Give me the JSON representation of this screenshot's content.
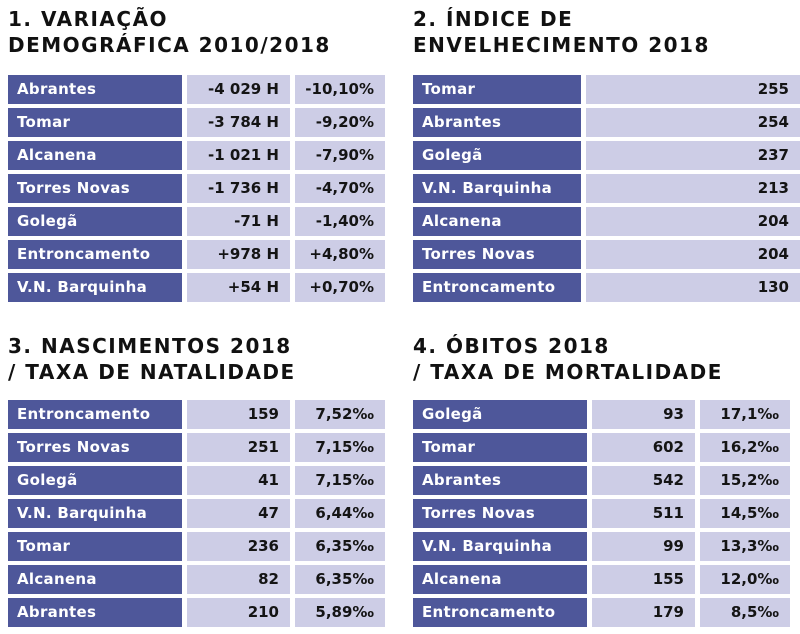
{
  "panels": [
    {
      "id": "variacao",
      "title_line1": "1. VARIAÇÃO",
      "title_line2": "DEMOGRÁFICA 2010/2018",
      "rows": [
        {
          "name": "Abrantes",
          "v1": "-4 029 H",
          "v2": "-10,10%"
        },
        {
          "name": "Tomar",
          "v1": "-3 784 H",
          "v2": "-9,20%"
        },
        {
          "name": "Alcanena",
          "v1": "-1 021 H",
          "v2": "-7,90%"
        },
        {
          "name": "Torres Novas",
          "v1": "-1 736 H",
          "v2": "-4,70%"
        },
        {
          "name": "Golegã",
          "v1": "-71 H",
          "v2": "-1,40%"
        },
        {
          "name": "Entroncamento",
          "v1": "+978 H",
          "v2": "+4,80%"
        },
        {
          "name": "V.N. Barquinha",
          "v1": "+54 H",
          "v2": "+0,70%"
        }
      ]
    },
    {
      "id": "envelhecimento",
      "title_line1": "2. ÍNDICE DE",
      "title_line2": "ENVELHECIMENTO 2018",
      "rows": [
        {
          "name": "Tomar",
          "v1": "255"
        },
        {
          "name": "Abrantes",
          "v1": "254"
        },
        {
          "name": "Golegã",
          "v1": "237"
        },
        {
          "name": "V.N. Barquinha",
          "v1": "213"
        },
        {
          "name": "Alcanena",
          "v1": "204"
        },
        {
          "name": "Torres Novas",
          "v1": "204"
        },
        {
          "name": "Entroncamento",
          "v1": "130"
        }
      ]
    },
    {
      "id": "nascimentos",
      "title_line1": "3. NASCIMENTOS 2018",
      "title_line2": "/ TAXA DE NATALIDADE",
      "rows": [
        {
          "name": "Entroncamento",
          "v1": "159",
          "v2": "7,52‰"
        },
        {
          "name": "Torres Novas",
          "v1": "251",
          "v2": "7,15‰"
        },
        {
          "name": "Golegã",
          "v1": "41",
          "v2": "7,15‰"
        },
        {
          "name": "V.N. Barquinha",
          "v1": "47",
          "v2": "6,44‰"
        },
        {
          "name": "Tomar",
          "v1": "236",
          "v2": "6,35‰"
        },
        {
          "name": "Alcanena",
          "v1": "82",
          "v2": "6,35‰"
        },
        {
          "name": "Abrantes",
          "v1": "210",
          "v2": "5,89‰"
        }
      ]
    },
    {
      "id": "obitos",
      "title_line1": "4. ÓBITOS 2018",
      "title_line2": "/ TAXA DE MORTALIDADE",
      "rows": [
        {
          "name": "Golegã",
          "v1": "93",
          "v2": "17,1‰"
        },
        {
          "name": "Tomar",
          "v1": "602",
          "v2": "16,2‰"
        },
        {
          "name": "Abrantes",
          "v1": "542",
          "v2": "15,2‰"
        },
        {
          "name": "Torres Novas",
          "v1": "511",
          "v2": "14,5‰"
        },
        {
          "name": "V.N. Barquinha",
          "v1": "99",
          "v2": "13,3‰"
        },
        {
          "name": "Alcanena",
          "v1": "155",
          "v2": "12,0‰"
        },
        {
          "name": "Entroncamento",
          "v1": "179",
          "v2": "8,5‰"
        }
      ]
    }
  ]
}
